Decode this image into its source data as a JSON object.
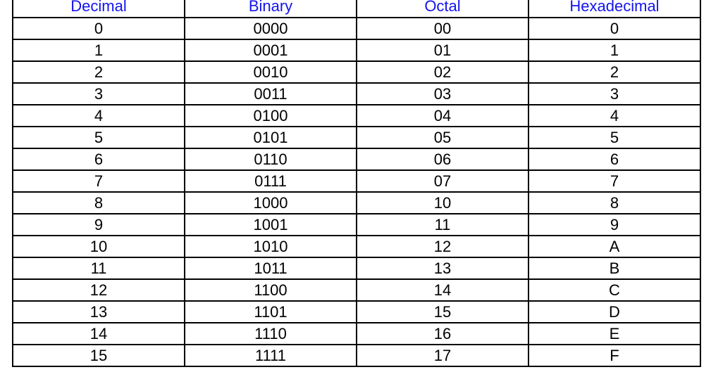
{
  "table": {
    "title": "number-base-conversion-table",
    "columns": [
      {
        "label": "Decimal"
      },
      {
        "label": "Binary"
      },
      {
        "label": "Octal"
      },
      {
        "label": "Hexadecimal"
      }
    ],
    "rows": [
      [
        "0",
        "0000",
        "00",
        "0"
      ],
      [
        "1",
        "0001",
        "01",
        "1"
      ],
      [
        "2",
        "0010",
        "02",
        "2"
      ],
      [
        "3",
        "0011",
        "03",
        "3"
      ],
      [
        "4",
        "0100",
        "04",
        "4"
      ],
      [
        "5",
        "0101",
        "05",
        "5"
      ],
      [
        "6",
        "0110",
        "06",
        "6"
      ],
      [
        "7",
        "0111",
        "07",
        "7"
      ],
      [
        "8",
        "1000",
        "10",
        "8"
      ],
      [
        "9",
        "1001",
        "11",
        "9"
      ],
      [
        "10",
        "1010",
        "12",
        "A"
      ],
      [
        "11",
        "1011",
        "13",
        "B"
      ],
      [
        "12",
        "1100",
        "14",
        "C"
      ],
      [
        "13",
        "1101",
        "15",
        "D"
      ],
      [
        "14",
        "1110",
        "16",
        "E"
      ],
      [
        "15",
        "1111",
        "17",
        "F"
      ]
    ]
  },
  "colors": {
    "header_text": "#1414EE",
    "body_text": "#000000",
    "border": "#000000",
    "background": "#FFFFFF"
  }
}
